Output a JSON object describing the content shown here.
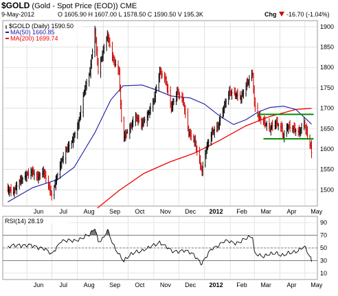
{
  "header": {
    "symbol": "$GOLD",
    "description": " (Gold - Spot Price (EOD)) CME",
    "date": "9-May-2012",
    "quote": "O 1605.90  H 1607.00  L 1578.50  C 1590.50  V 195.3K",
    "change_label": "Chg",
    "change_value": "-16.70 (-1.04%)",
    "change_arrow": "down-triangle-icon"
  },
  "legend": {
    "price": "$GOLD (Daily) 1590.50",
    "ma50": "MA(50) 1660.85",
    "ma200": "MA(200) 1699.74"
  },
  "rsi_label": "RSI(14) 28.19",
  "colors": {
    "up_bar": "#000000",
    "down_bar": "#cc0000",
    "ma50": "#1a1aa6",
    "ma200": "#ee0000",
    "support_lines": "#008a00",
    "rsi_line": "#000000",
    "rsi_overbought_fill": "#7a7a7a",
    "grid": "#cfcfcf"
  },
  "chart_data": [
    {
      "type": "candlestick",
      "title": "$GOLD (Gold - Spot Price (EOD)) CME",
      "ylim": [
        1460,
        1915
      ],
      "y_ticks": [
        1500,
        1550,
        1600,
        1650,
        1700,
        1750,
        1800,
        1850,
        1900
      ],
      "x_tick_labels": [
        "Jun",
        "Jul",
        "Aug",
        "Sep",
        "Oct",
        "Nov",
        "Dec",
        "2012",
        "Feb",
        "Mar",
        "Apr",
        "May"
      ],
      "grid": true,
      "price_path": [
        [
          "2011-05-09",
          1500
        ],
        [
          "2011-05-16",
          1495
        ],
        [
          "2011-05-23",
          1520
        ],
        [
          "2011-05-31",
          1535
        ],
        [
          "2011-06-07",
          1545
        ],
        [
          "2011-06-14",
          1530
        ],
        [
          "2011-06-21",
          1545
        ],
        [
          "2011-06-28",
          1505
        ],
        [
          "2011-07-01",
          1485
        ],
        [
          "2011-07-05",
          1515
        ],
        [
          "2011-07-12",
          1565
        ],
        [
          "2011-07-19",
          1600
        ],
        [
          "2011-07-26",
          1620
        ],
        [
          "2011-08-02",
          1660
        ],
        [
          "2011-08-09",
          1740
        ],
        [
          "2011-08-16",
          1790
        ],
        [
          "2011-08-22",
          1890
        ],
        [
          "2011-08-26",
          1790
        ],
        [
          "2011-09-01",
          1840
        ],
        [
          "2011-09-06",
          1880
        ],
        [
          "2011-09-13",
          1820
        ],
        [
          "2011-09-20",
          1790
        ],
        [
          "2011-09-23",
          1670
        ],
        [
          "2011-09-26",
          1630
        ],
        [
          "2011-10-03",
          1650
        ],
        [
          "2011-10-10",
          1680
        ],
        [
          "2011-10-17",
          1660
        ],
        [
          "2011-10-24",
          1680
        ],
        [
          "2011-11-01",
          1720
        ],
        [
          "2011-11-08",
          1790
        ],
        [
          "2011-11-15",
          1770
        ],
        [
          "2011-11-22",
          1700
        ],
        [
          "2011-11-29",
          1740
        ],
        [
          "2011-12-06",
          1720
        ],
        [
          "2011-12-13",
          1640
        ],
        [
          "2011-12-20",
          1620
        ],
        [
          "2011-12-29",
          1545
        ],
        [
          "2012-01-03",
          1600
        ],
        [
          "2012-01-10",
          1640
        ],
        [
          "2012-01-17",
          1655
        ],
        [
          "2012-01-24",
          1700
        ],
        [
          "2012-01-31",
          1740
        ],
        [
          "2012-02-07",
          1735
        ],
        [
          "2012-02-14",
          1725
        ],
        [
          "2012-02-21",
          1760
        ],
        [
          "2012-02-28",
          1785
        ],
        [
          "2012-03-01",
          1710
        ],
        [
          "2012-03-06",
          1680
        ],
        [
          "2012-03-13",
          1665
        ],
        [
          "2012-03-20",
          1650
        ],
        [
          "2012-03-27",
          1665
        ],
        [
          "2012-04-03",
          1650
        ],
        [
          "2012-04-05",
          1630
        ],
        [
          "2012-04-10",
          1655
        ],
        [
          "2012-04-17",
          1650
        ],
        [
          "2012-04-24",
          1640
        ],
        [
          "2012-04-30",
          1665
        ],
        [
          "2012-05-03",
          1640
        ],
        [
          "2012-05-08",
          1605
        ],
        [
          "2012-05-09",
          1590.5
        ]
      ],
      "ma50_path": [
        [
          "2011-05-09",
          1470
        ],
        [
          "2011-06-08",
          1505
        ],
        [
          "2011-07-08",
          1525
        ],
        [
          "2011-07-28",
          1555
        ],
        [
          "2011-08-22",
          1640
        ],
        [
          "2011-09-10",
          1720
        ],
        [
          "2011-09-25",
          1755
        ],
        [
          "2011-10-18",
          1757
        ],
        [
          "2011-11-01",
          1747
        ],
        [
          "2011-11-22",
          1730
        ],
        [
          "2011-12-15",
          1725
        ],
        [
          "2012-01-01",
          1710
        ],
        [
          "2012-01-20",
          1680
        ],
        [
          "2012-02-05",
          1660
        ],
        [
          "2012-02-20",
          1672
        ],
        [
          "2012-03-05",
          1690
        ],
        [
          "2012-03-20",
          1702
        ],
        [
          "2012-04-05",
          1705
        ],
        [
          "2012-04-20",
          1697
        ],
        [
          "2012-05-09",
          1660.85
        ]
      ],
      "ma200_path": [
        [
          "2011-08-25",
          1455
        ],
        [
          "2011-09-20",
          1498
        ],
        [
          "2011-10-20",
          1540
        ],
        [
          "2011-11-20",
          1568
        ],
        [
          "2011-12-20",
          1590
        ],
        [
          "2012-01-20",
          1622
        ],
        [
          "2012-02-20",
          1657
        ],
        [
          "2012-03-20",
          1680
        ],
        [
          "2012-04-20",
          1697
        ],
        [
          "2012-05-09",
          1699.74
        ]
      ],
      "horizontal_lines": [
        {
          "from": "2012-03-05",
          "to": "2012-05-09",
          "y": 1685
        },
        {
          "from": "2012-03-12",
          "to": "2012-05-09",
          "y": 1625
        }
      ]
    },
    {
      "type": "line",
      "title": "RSI(14) 28.19",
      "ylim": [
        0,
        100
      ],
      "y_ticks": [
        10,
        30,
        50,
        70,
        90
      ],
      "reference_lines": [
        30,
        50,
        70
      ],
      "x_tick_labels": [
        "Jun",
        "Jul",
        "Aug",
        "Sep",
        "Oct",
        "Nov",
        "Dec",
        "2012",
        "Feb",
        "Mar",
        "Apr",
        "May"
      ],
      "rsi_path": [
        [
          "2011-05-09",
          50
        ],
        [
          "2011-05-23",
          55
        ],
        [
          "2011-06-07",
          52
        ],
        [
          "2011-06-21",
          50
        ],
        [
          "2011-07-01",
          38
        ],
        [
          "2011-07-12",
          62
        ],
        [
          "2011-07-26",
          60
        ],
        [
          "2011-08-09",
          68
        ],
        [
          "2011-08-16",
          70
        ],
        [
          "2011-08-22",
          82
        ],
        [
          "2011-08-26",
          62
        ],
        [
          "2011-09-01",
          66
        ],
        [
          "2011-09-06",
          78
        ],
        [
          "2011-09-13",
          55
        ],
        [
          "2011-09-23",
          36
        ],
        [
          "2011-09-26",
          30
        ],
        [
          "2011-10-10",
          45
        ],
        [
          "2011-10-24",
          48
        ],
        [
          "2011-11-08",
          60
        ],
        [
          "2011-11-22",
          44
        ],
        [
          "2011-12-06",
          46
        ],
        [
          "2011-12-20",
          38
        ],
        [
          "2011-12-29",
          25
        ],
        [
          "2012-01-10",
          48
        ],
        [
          "2012-01-24",
          60
        ],
        [
          "2012-02-07",
          58
        ],
        [
          "2012-02-28",
          68
        ],
        [
          "2012-03-01",
          44
        ],
        [
          "2012-03-13",
          36
        ],
        [
          "2012-03-27",
          44
        ],
        [
          "2012-04-05",
          38
        ],
        [
          "2012-04-17",
          44
        ],
        [
          "2012-04-30",
          52
        ],
        [
          "2012-05-08",
          33
        ],
        [
          "2012-05-09",
          28.19
        ]
      ]
    }
  ]
}
